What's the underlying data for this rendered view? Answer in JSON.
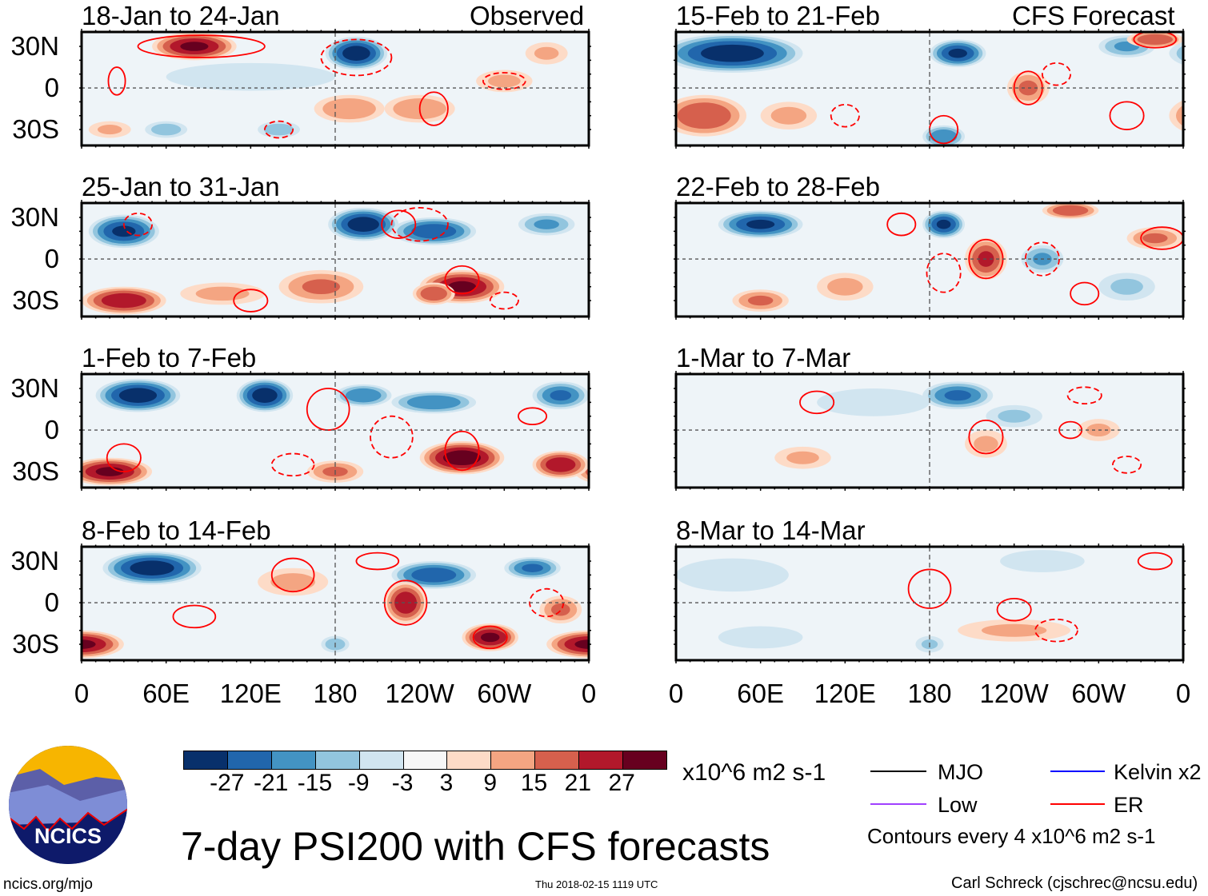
{
  "header": {
    "left_label": "Observed",
    "right_label": "CFS Forecast"
  },
  "colors": {
    "levels": [
      "#08306b",
      "#2166ac",
      "#4393c3",
      "#92c5de",
      "#d1e5f0",
      "#f7f7f7",
      "#fddbc7",
      "#f4a582",
      "#d6604d",
      "#b2182b",
      "#67001f"
    ],
    "er": "#ff0000",
    "mjo": "#000000",
    "kelvin": "#0000ff",
    "low": "#a040ff"
  },
  "axes": {
    "y_ticks": [
      "30N",
      "0",
      "30S"
    ],
    "x_ticks": [
      "0",
      "60E",
      "120E",
      "180",
      "120W",
      "60W",
      "0"
    ]
  },
  "chart_data": [
    {
      "type": "heatmap",
      "title": "18-Jan to 24-Jan",
      "group": "Observed",
      "features": [
        [
          80,
          30,
          27,
          30,
          10
        ],
        [
          195,
          25,
          -30,
          22,
          12
        ],
        [
          190,
          -15,
          14,
          25,
          10
        ],
        [
          240,
          -15,
          14,
          25,
          10
        ],
        [
          300,
          5,
          9,
          20,
          8
        ],
        [
          60,
          -30,
          -12,
          15,
          6
        ],
        [
          140,
          -30,
          -12,
          15,
          6
        ],
        [
          20,
          -30,
          9,
          15,
          6
        ],
        [
          120,
          8,
          -5,
          60,
          10
        ],
        [
          330,
          25,
          9,
          15,
          8
        ]
      ],
      "contours": [
        [
          85,
          30,
          45,
          8,
          0
        ],
        [
          195,
          22,
          25,
          13,
          1
        ],
        [
          250,
          -15,
          10,
          12,
          0
        ],
        [
          300,
          5,
          15,
          6,
          1
        ],
        [
          140,
          -30,
          10,
          6,
          1
        ],
        [
          25,
          5,
          6,
          10,
          0
        ]
      ]
    },
    {
      "type": "heatmap",
      "title": "25-Jan to 31-Jan",
      "group": "Observed",
      "features": [
        [
          30,
          20,
          -27,
          25,
          12
        ],
        [
          200,
          25,
          -30,
          25,
          12
        ],
        [
          250,
          20,
          -25,
          30,
          10
        ],
        [
          330,
          25,
          -15,
          20,
          8
        ],
        [
          30,
          -30,
          25,
          30,
          10
        ],
        [
          170,
          -20,
          15,
          30,
          12
        ],
        [
          270,
          -20,
          27,
          30,
          12
        ],
        [
          250,
          -25,
          20,
          15,
          8
        ],
        [
          100,
          -25,
          10,
          30,
          8
        ]
      ],
      "contours": [
        [
          225,
          25,
          12,
          10,
          0
        ],
        [
          240,
          25,
          20,
          12,
          1
        ],
        [
          270,
          -15,
          12,
          10,
          0
        ],
        [
          120,
          -30,
          12,
          8,
          0
        ],
        [
          300,
          -30,
          10,
          6,
          1
        ],
        [
          40,
          25,
          10,
          8,
          1
        ]
      ]
    },
    {
      "type": "heatmap",
      "title": "1-Feb to 7-Feb",
      "group": "Observed",
      "features": [
        [
          40,
          25,
          -30,
          30,
          12
        ],
        [
          130,
          25,
          -30,
          20,
          12
        ],
        [
          200,
          25,
          -20,
          20,
          8
        ],
        [
          250,
          20,
          -20,
          30,
          8
        ],
        [
          340,
          25,
          -21,
          20,
          10
        ],
        [
          20,
          -30,
          27,
          30,
          10
        ],
        [
          270,
          -20,
          30,
          30,
          12
        ],
        [
          340,
          -25,
          25,
          20,
          10
        ],
        [
          180,
          -30,
          15,
          20,
          8
        ]
      ],
      "contours": [
        [
          175,
          15,
          15,
          15,
          0
        ],
        [
          220,
          -5,
          15,
          15,
          1
        ],
        [
          270,
          -15,
          12,
          14,
          0
        ],
        [
          30,
          -20,
          12,
          10,
          0
        ],
        [
          320,
          10,
          10,
          6,
          0
        ],
        [
          150,
          -25,
          15,
          8,
          1
        ]
      ]
    },
    {
      "type": "heatmap",
      "title": "8-Feb to 14-Feb",
      "group": "Observed",
      "features": [
        [
          50,
          25,
          -30,
          35,
          12
        ],
        [
          250,
          20,
          -25,
          30,
          10
        ],
        [
          320,
          25,
          -21,
          20,
          8
        ],
        [
          230,
          0,
          25,
          15,
          15
        ],
        [
          0,
          -30,
          27,
          30,
          10
        ],
        [
          290,
          -25,
          27,
          20,
          10
        ],
        [
          150,
          15,
          10,
          25,
          10
        ],
        [
          340,
          -5,
          15,
          15,
          10
        ],
        [
          180,
          -30,
          -12,
          10,
          6
        ]
      ],
      "contours": [
        [
          150,
          20,
          15,
          12,
          0
        ],
        [
          230,
          0,
          15,
          16,
          0
        ],
        [
          290,
          -25,
          12,
          8,
          0
        ],
        [
          210,
          30,
          15,
          6,
          0
        ],
        [
          330,
          0,
          12,
          10,
          1
        ],
        [
          80,
          -10,
          15,
          8,
          0
        ]
      ]
    },
    {
      "type": "heatmap",
      "title": "15-Feb to 21-Feb",
      "group": "CFS Forecast",
      "features": [
        [
          40,
          25,
          -30,
          50,
          14
        ],
        [
          200,
          25,
          -27,
          20,
          10
        ],
        [
          320,
          30,
          -15,
          20,
          8
        ],
        [
          340,
          35,
          20,
          20,
          6
        ],
        [
          20,
          -20,
          20,
          30,
          15
        ],
        [
          250,
          0,
          15,
          15,
          12
        ],
        [
          190,
          -35,
          -20,
          15,
          8
        ],
        [
          80,
          -20,
          10,
          20,
          10
        ]
      ],
      "contours": [
        [
          250,
          0,
          10,
          12,
          0
        ],
        [
          190,
          -30,
          10,
          10,
          0
        ],
        [
          340,
          35,
          15,
          6,
          0
        ],
        [
          270,
          10,
          10,
          8,
          1
        ],
        [
          320,
          -20,
          12,
          10,
          0
        ],
        [
          120,
          -20,
          10,
          8,
          1
        ]
      ]
    },
    {
      "type": "heatmap",
      "title": "22-Feb to 28-Feb",
      "group": "CFS Forecast",
      "features": [
        [
          60,
          25,
          -27,
          30,
          10
        ],
        [
          190,
          25,
          -27,
          15,
          10
        ],
        [
          220,
          0,
          21,
          15,
          15
        ],
        [
          260,
          0,
          -15,
          15,
          10
        ],
        [
          280,
          35,
          20,
          20,
          6
        ],
        [
          340,
          15,
          15,
          20,
          8
        ],
        [
          60,
          -30,
          15,
          20,
          8
        ],
        [
          120,
          -20,
          10,
          20,
          10
        ],
        [
          320,
          -20,
          -9,
          20,
          10
        ]
      ],
      "contours": [
        [
          220,
          0,
          12,
          14,
          0
        ],
        [
          260,
          0,
          12,
          12,
          1
        ],
        [
          190,
          -10,
          12,
          14,
          1
        ],
        [
          345,
          15,
          15,
          8,
          0
        ],
        [
          160,
          25,
          10,
          8,
          0
        ],
        [
          290,
          -25,
          10,
          8,
          0
        ]
      ]
    },
    {
      "type": "heatmap",
      "title": "1-Mar to 7-Mar",
      "group": "CFS Forecast",
      "features": [
        [
          200,
          25,
          -21,
          25,
          10
        ],
        [
          240,
          10,
          -9,
          20,
          8
        ],
        [
          220,
          -10,
          9,
          15,
          10
        ],
        [
          90,
          -20,
          9,
          20,
          8
        ],
        [
          300,
          0,
          9,
          15,
          8
        ],
        [
          140,
          20,
          -5,
          40,
          10
        ]
      ],
      "contours": [
        [
          220,
          -5,
          12,
          12,
          0
        ],
        [
          290,
          25,
          12,
          6,
          1
        ],
        [
          100,
          20,
          12,
          8,
          0
        ],
        [
          320,
          -25,
          10,
          6,
          1
        ],
        [
          280,
          0,
          8,
          6,
          0
        ]
      ]
    },
    {
      "type": "heatmap",
      "title": "8-Mar to 14-Mar",
      "group": "CFS Forecast",
      "features": [
        [
          40,
          20,
          -6,
          40,
          12
        ],
        [
          240,
          -20,
          9,
          40,
          8
        ],
        [
          260,
          30,
          -5,
          30,
          8
        ],
        [
          60,
          -25,
          -6,
          30,
          8
        ],
        [
          180,
          -30,
          -9,
          10,
          6
        ]
      ],
      "contours": [
        [
          180,
          10,
          15,
          14,
          0
        ],
        [
          240,
          -5,
          12,
          8,
          0
        ],
        [
          270,
          -20,
          15,
          8,
          1
        ],
        [
          340,
          30,
          12,
          6,
          0
        ]
      ]
    }
  ],
  "colorbar": {
    "labels": [
      "-27",
      "-21",
      "-15",
      "-9",
      "-3",
      "3",
      "9",
      "15",
      "21",
      "27"
    ],
    "units": "x10^6 m2 s-1"
  },
  "legend": {
    "items": [
      "MJO",
      "Kelvin x2",
      "Low",
      "ER"
    ],
    "note": "Contours every 4 x10^6 m2 s-1"
  },
  "footer": {
    "title": "7-day PSI200 with CFS forecasts",
    "url": "ncics.org/mjo",
    "timestamp": "Thu 2018-02-15 1119 UTC",
    "author": "Carl Schreck (cjschrec@ncsu.edu)",
    "logo_text": "NCICS"
  }
}
